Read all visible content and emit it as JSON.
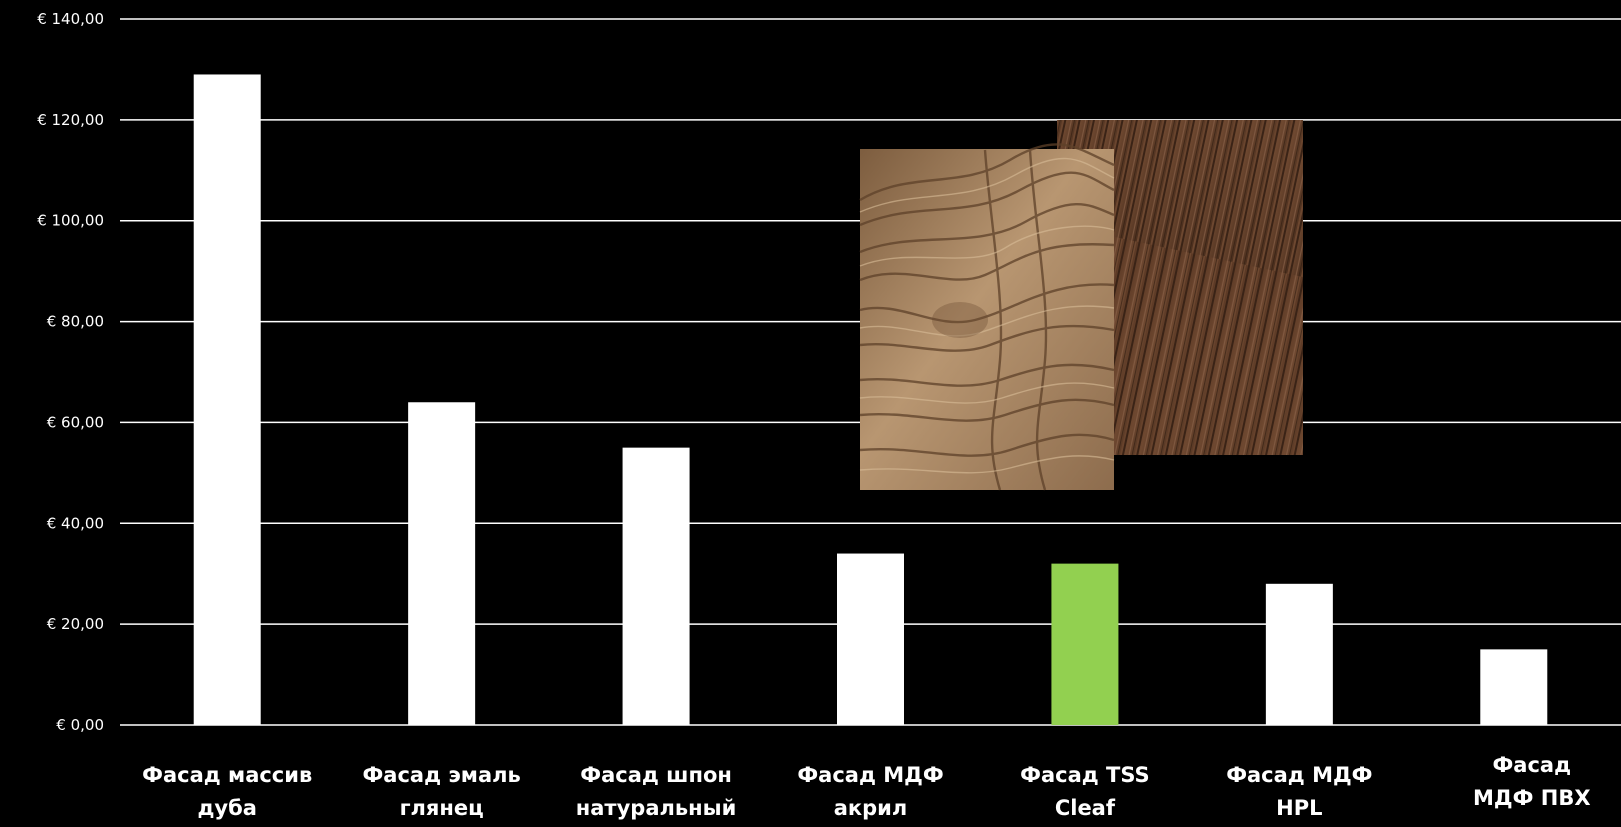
{
  "chart_data": {
    "type": "bar",
    "categories": [
      [
        "Фасад массив",
        "дуба"
      ],
      [
        "Фасад эмаль",
        "глянец"
      ],
      [
        "Фасад шпон",
        "натуральный"
      ],
      [
        "Фасад МДФ",
        "акрил"
      ],
      [
        "Фасад TSS",
        "Cleaf"
      ],
      [
        "Фасад МДФ",
        "HPL"
      ],
      [
        "Фасад",
        "МДФ ПВХ"
      ]
    ],
    "values": [
      129,
      64,
      55,
      34,
      32,
      28,
      15
    ],
    "bar_colors": [
      "#ffffff",
      "#ffffff",
      "#ffffff",
      "#ffffff",
      "#92d050",
      "#ffffff",
      "#ffffff"
    ],
    "ylim": [
      0,
      140
    ],
    "yticks": [
      {
        "value": 0,
        "label": "€ 0,00"
      },
      {
        "value": 20,
        "label": "€ 20,00"
      },
      {
        "value": 40,
        "label": "€ 40,00"
      },
      {
        "value": 60,
        "label": "€ 60,00"
      },
      {
        "value": 80,
        "label": "€ 80,00"
      },
      {
        "value": 100,
        "label": "€ 100,00"
      },
      {
        "value": 120,
        "label": "€ 120,00"
      },
      {
        "value": 140,
        "label": "€ 140,00"
      }
    ],
    "grid": true,
    "background": "#000000",
    "gridline_color": "#ffffff",
    "text_color": "#ffffff",
    "title": "",
    "xlabel": "",
    "ylabel": ""
  },
  "images": {
    "sample_light": "light-oak-wood-texture",
    "sample_dark": "dark-brown-wood-texture"
  }
}
